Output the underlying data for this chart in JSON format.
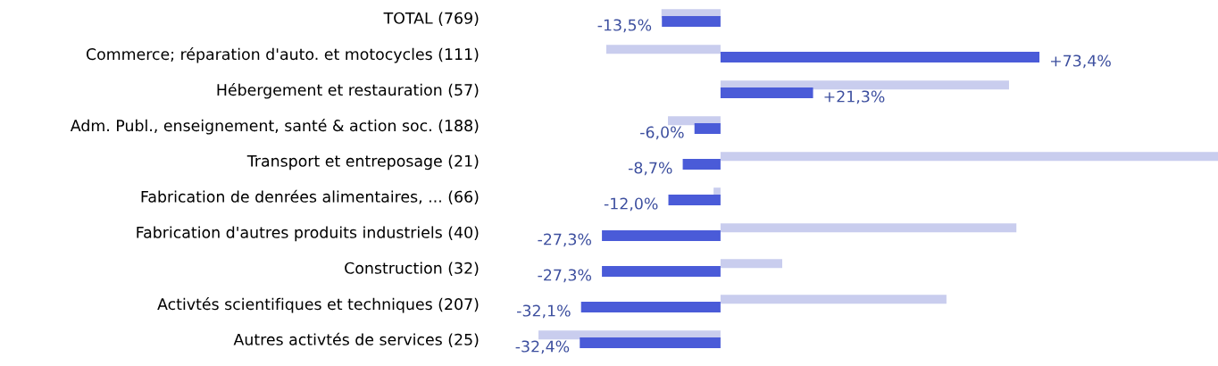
{
  "chart_data": {
    "type": "bar",
    "orientation": "horizontal",
    "categories": [
      "TOTAL (769)",
      "Commerce; réparation d'auto. et motocycles (111)",
      "Hébergement et restauration (57)",
      "Adm. Publ., enseignement, santé & action soc. (188)",
      "Transport et entreposage (21)",
      "Fabrication de denrées alimentaires, ... (66)",
      "Fabrication d'autres produits industriels (40)",
      "Construction (32)",
      "Activtés scientifiques et techniques (207)",
      "Autres activtés de services (25)"
    ],
    "series": [
      {
        "color": "#c9cdee",
        "values": [
          -13.6,
          -26.3,
          66.4,
          -12.1,
          114.5,
          -1.6,
          68.1,
          14.2,
          52.0,
          -41.9
        ]
      },
      {
        "color": "#4a5bd8",
        "values": [
          -13.5,
          73.4,
          21.3,
          -6.0,
          -8.7,
          -12.0,
          -27.3,
          -27.3,
          -32.1,
          -32.4
        ],
        "value_labels": [
          "-13,5%",
          "+73,4%",
          "+21,3%",
          "-6,0%",
          "-8,7%",
          "-12,0%",
          "-27,3%",
          "-27,3%",
          "-32,1%",
          "-32,4%"
        ]
      }
    ]
  }
}
